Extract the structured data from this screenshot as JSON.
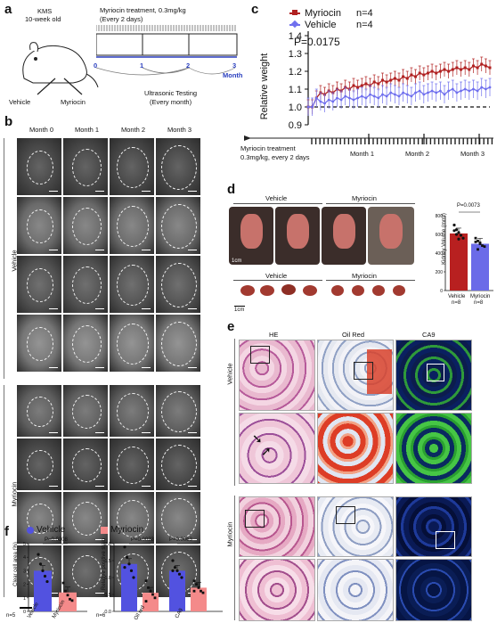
{
  "panel_a": {
    "label": "a",
    "strain": "KMS",
    "age": "10-week old",
    "vehicle": "Vehicle",
    "myriocin": "Myriocin",
    "treatment": "Myriocin treatment, 0.3mg/kg",
    "schedule": "(Every 2 days)",
    "ticks": [
      "0",
      "1",
      "2",
      "3"
    ],
    "month_label": "Month",
    "testing": "Ultrasonic Testing",
    "testing_freq": "(Every month)"
  },
  "panel_b": {
    "label": "b",
    "columns": [
      "Month 0",
      "Month 1",
      "Month 2",
      "Month 3"
    ],
    "group_vehicle": "Vehicle",
    "group_myriocin": "Myriocin",
    "scale": "2mm"
  },
  "panel_c": {
    "label": "c",
    "legend_myr": "Myriocin",
    "legend_myr_n": "n=4",
    "legend_veh": "Vehicle",
    "legend_veh_n": "n=4",
    "pvalue": "P=0.0175",
    "treatment_line1": "Myriocin treatment",
    "treatment_line2": "0.3mg/kg, every 2 days",
    "month_labels": [
      "Month 1",
      "Month 2",
      "Month 3"
    ]
  },
  "panel_d": {
    "label": "d",
    "vehicle": "Vehicle",
    "myriocin": "Myriocin",
    "scale": "1cm",
    "bar_title": "P=0.0073",
    "bar_cats": [
      "Vehicle",
      "Myriocin"
    ],
    "bar_n": [
      "n=8",
      "n=8"
    ]
  },
  "panel_e": {
    "label": "e",
    "columns": [
      "HE",
      "Oil Red",
      "CA9"
    ],
    "group_vehicle": "Vehicle",
    "group_myriocin": "Myriocin"
  },
  "panel_f": {
    "label": "f",
    "legend_veh": "Vehicle",
    "legend_myr": "Myriocin",
    "colors": {
      "vehicle": "#5252e0",
      "myriocin": "#f48a8a",
      "myr_line": "#b02020",
      "veh_line": "#7070ee"
    }
  },
  "chart_data": [
    {
      "type": "line",
      "ylabel": "Relative weight",
      "ylim": [
        0.9,
        1.4
      ],
      "yticks": [
        "0.9",
        "1.0",
        "1.1",
        "1.2",
        "1.3",
        "1.4"
      ],
      "x": [
        1,
        2,
        3,
        4,
        5,
        6,
        7,
        8,
        9,
        10,
        11,
        12,
        13,
        14,
        15,
        16,
        17,
        18,
        19,
        20,
        21,
        22,
        23,
        24,
        25,
        26,
        27,
        28,
        29,
        30,
        31,
        32,
        33,
        34,
        35,
        36,
        37,
        38,
        39,
        40,
        41,
        42,
        43,
        44,
        45
      ],
      "series": [
        {
          "name": "Myriocin",
          "values": [
            1.0,
            1.0,
            1.05,
            1.08,
            1.07,
            1.09,
            1.08,
            1.1,
            1.09,
            1.11,
            1.1,
            1.12,
            1.11,
            1.12,
            1.13,
            1.12,
            1.14,
            1.13,
            1.15,
            1.14,
            1.15,
            1.16,
            1.15,
            1.17,
            1.16,
            1.18,
            1.17,
            1.19,
            1.18,
            1.19,
            1.2,
            1.19,
            1.2,
            1.21,
            1.2,
            1.21,
            1.22,
            1.21,
            1.22,
            1.21,
            1.23,
            1.22,
            1.24,
            1.23,
            1.22
          ],
          "err": 0.04
        },
        {
          "name": "Vehicle",
          "values": [
            1.0,
            1.0,
            1.05,
            1.03,
            1.02,
            1.04,
            1.03,
            1.05,
            1.04,
            1.06,
            1.05,
            1.04,
            1.05,
            1.06,
            1.05,
            1.07,
            1.06,
            1.05,
            1.07,
            1.06,
            1.08,
            1.07,
            1.06,
            1.08,
            1.07,
            1.06,
            1.08,
            1.09,
            1.07,
            1.08,
            1.09,
            1.08,
            1.09,
            1.07,
            1.09,
            1.1,
            1.08,
            1.09,
            1.1,
            1.09,
            1.1,
            1.09,
            1.11,
            1.1,
            1.11
          ],
          "err": 0.05
        }
      ],
      "baseline": 1.0
    },
    {
      "type": "bar",
      "ylabel": "Kidney Volume (mm³)",
      "ylim": [
        0,
        800
      ],
      "yticks": [
        "0",
        "200",
        "400",
        "600",
        "800"
      ],
      "categories": [
        "Vehicle",
        "Myriocin"
      ],
      "values": [
        610,
        500
      ],
      "points": [
        [
          700,
          650,
          620,
          590,
          560,
          640,
          600,
          550
        ],
        [
          560,
          530,
          500,
          480,
          470,
          520,
          440,
          510
        ]
      ]
    },
    {
      "type": "bar",
      "ylabel": "Clear cell area (%)",
      "ylim": [
        0,
        5
      ],
      "yticks": [
        "0",
        "1",
        "2",
        "3",
        "4",
        "5"
      ],
      "categories": [
        "Vehicle",
        "Myriocin"
      ],
      "values": [
        3.0,
        1.4
      ],
      "pvalue": "P=0.0308",
      "n": "n=5",
      "points": [
        [
          4.2,
          3.5,
          3.0,
          2.6,
          2.2
        ],
        [
          2.1,
          1.5,
          1.2,
          0.9,
          0.8
        ]
      ]
    },
    {
      "type": "bar",
      "ylabel": "Relative positive stain",
      "ylim": [
        0.0,
        2.0
      ],
      "yticks": [
        "0.0",
        "0.5",
        "1.0",
        "1.5",
        "2.0"
      ],
      "n": "n=6",
      "groups": [
        {
          "name": "Oil red",
          "values": [
            1.4,
            0.55
          ],
          "pvalue": "P=0.0023",
          "points": [
            [
              1.9,
              1.6,
              1.4,
              1.2,
              1.0,
              1.3
            ],
            [
              0.9,
              0.7,
              0.6,
              0.5,
              0.4,
              0.3
            ]
          ]
        },
        {
          "name": "CA9",
          "values": [
            1.2,
            0.7
          ],
          "pvalue": "P=0.0063",
          "points": [
            [
              1.5,
              1.3,
              1.2,
              1.1,
              1.0,
              1.2
            ],
            [
              0.9,
              0.8,
              0.7,
              0.6,
              0.55,
              0.6
            ]
          ]
        }
      ]
    }
  ]
}
